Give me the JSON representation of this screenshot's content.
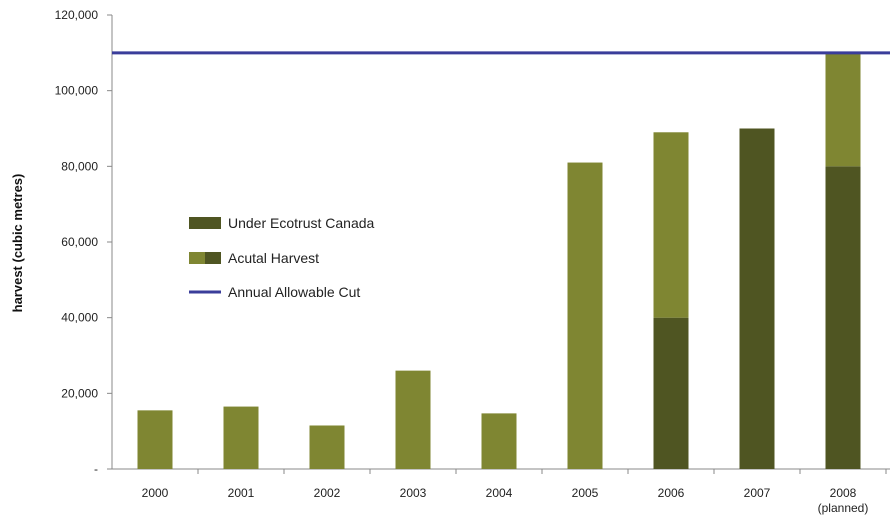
{
  "chart_data": {
    "type": "bar",
    "stacked": true,
    "ylabel": "harvest (cubic metres)",
    "ylim": [
      0,
      120000
    ],
    "yticks": [
      0,
      20000,
      40000,
      60000,
      80000,
      100000,
      120000
    ],
    "ytick_labels": [
      "-",
      "20,000",
      "40,000",
      "60,000",
      "80,000",
      "100,000",
      "120,000"
    ],
    "grid": false,
    "legend_placement": "center-left",
    "categories": [
      "2000",
      "2001",
      "2002",
      "2003",
      "2004",
      "2005",
      "2006",
      "2007",
      "2008"
    ],
    "category_sublabels": [
      "",
      "",
      "",
      "",
      "",
      "",
      "",
      "",
      "(planned)"
    ],
    "series": [
      {
        "name": "Under Ecotrust Canada",
        "color": "#4f5522",
        "values": [
          0,
          0,
          0,
          0,
          0,
          0,
          40000,
          90000,
          80000
        ]
      },
      {
        "name": "Acutal Harvest",
        "color": "#7f8632",
        "values": [
          15500,
          16500,
          11500,
          26000,
          14700,
          81000,
          49000,
          0,
          30000
        ]
      }
    ],
    "reference_line": {
      "name": "Annual Allowable Cut",
      "value": 110000,
      "color": "#3a3d9a"
    }
  }
}
